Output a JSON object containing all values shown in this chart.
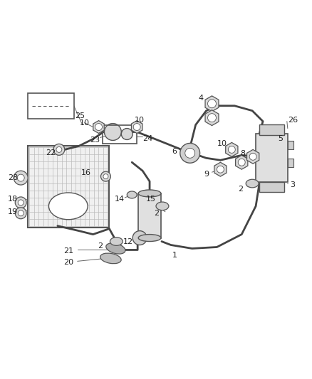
{
  "bg_color": "#ffffff",
  "line_color": "#555555",
  "label_color": "#222222",
  "fig_width": 4.38,
  "fig_height": 5.33,
  "dpi": 100
}
